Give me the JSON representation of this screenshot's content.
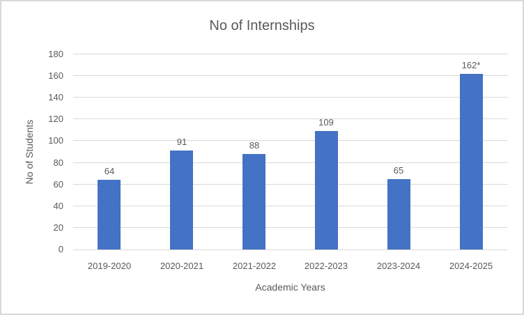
{
  "chart_data": {
    "type": "bar",
    "title": "No of Internships",
    "xlabel": "Academic Years",
    "ylabel": "No of Students",
    "categories": [
      "2019-2020",
      "2020-2021",
      "2021-2022",
      "2022-2023",
      "2023-2024",
      "2024-2025"
    ],
    "values": [
      64,
      91,
      88,
      109,
      65,
      162
    ],
    "data_labels": [
      "64",
      "91",
      "88",
      "109",
      "65",
      "162*"
    ],
    "ylim": [
      0,
      180
    ],
    "ytick_step": 20,
    "ytick_labels": [
      "0",
      "20",
      "40",
      "60",
      "80",
      "100",
      "120",
      "140",
      "160",
      "180"
    ],
    "grid": true,
    "legend": "none",
    "colors": {
      "bar": "#4472C4",
      "gridline": "#D9D9D9",
      "axis_line": "#D9D9D9",
      "text": "#595959",
      "border": "#D9D9D9",
      "background": "#FFFFFF"
    }
  }
}
